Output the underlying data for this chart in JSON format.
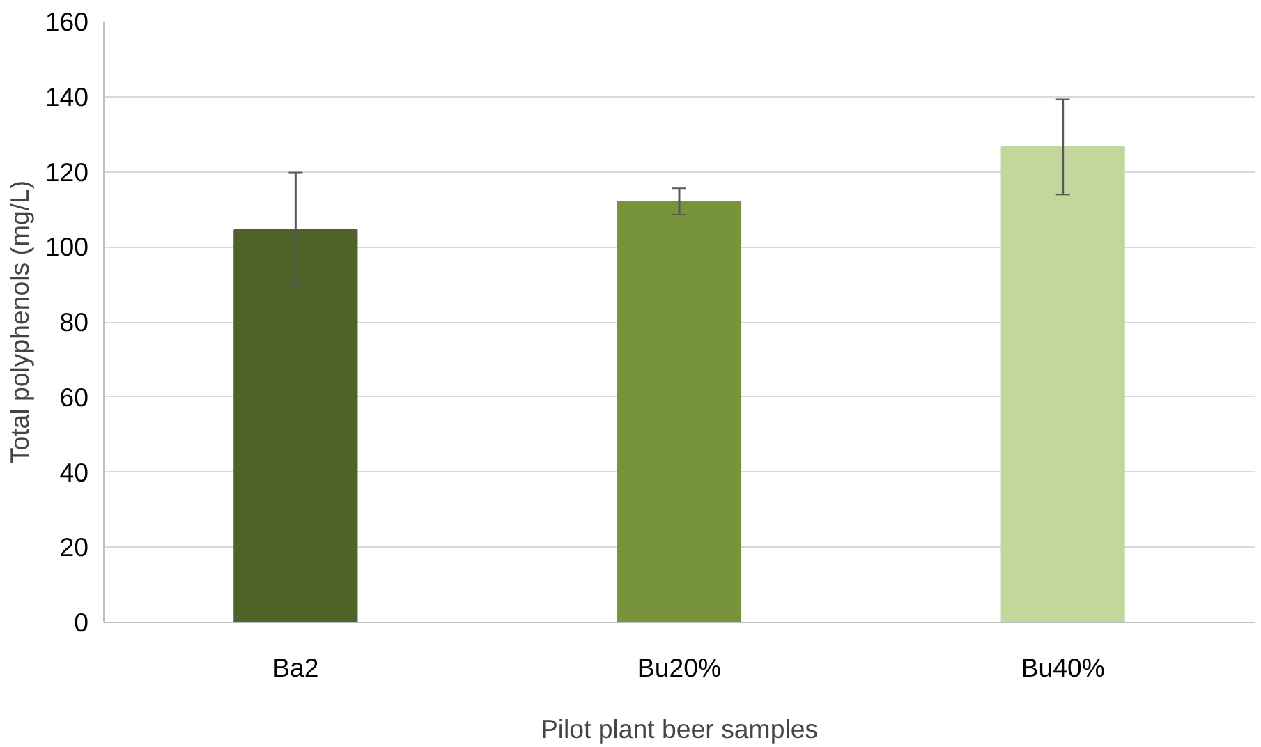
{
  "chart_data": {
    "type": "bar",
    "xlabel": "Pilot plant beer samples",
    "ylabel": "Total polyphenols (mg/L)",
    "categories": [
      "Ba2",
      "Bu20%",
      "Bu40%"
    ],
    "values": [
      104.5,
      112.1,
      126.6
    ],
    "errors": [
      15.3,
      3.5,
      12.7
    ],
    "colors": [
      "#4f6228",
      "#77933c",
      "#c3d69b"
    ],
    "ylim": [
      0,
      160
    ],
    "yticks": [
      0,
      20,
      40,
      60,
      80,
      100,
      120,
      140,
      160
    ],
    "grid": "y"
  }
}
